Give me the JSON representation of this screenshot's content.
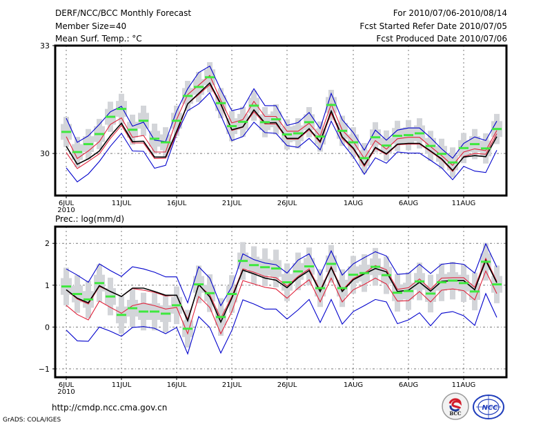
{
  "header": {
    "title": "DERF/NCC/BCC Monthly Forecast",
    "member_size": "Member Size=40",
    "variable_top": "Mean Surf. Temp.: °C",
    "for_range": "For 2010/07/06-2010/08/14",
    "fcst_started": "Fcst Started Refer Date 2010/07/05",
    "fcst_produced": "Fcst Produced Date 2010/07/06"
  },
  "footer": {
    "url": "http://cmdp.ncc.cma.gov.cn",
    "grads_credit": "GrADS: COLA/IGES",
    "logo_bcc": "BCC",
    "logo_ncc": "NCC"
  },
  "colors": {
    "ensemble_mean": "#000000",
    "spread_inner": "#e0223a",
    "spread_outer": "#0000cc",
    "member_box": "#d3d5d9",
    "median_bar": "#3ee83e",
    "grid": "#777777"
  },
  "chart_data": [
    {
      "type": "line",
      "title": "Mean Surf. Temp.: °C",
      "xlabel": "",
      "ylabel": "",
      "ylim": [
        28.83,
        33
      ],
      "yticks": [
        30,
        33
      ],
      "ytick_labels": [
        "30",
        "33"
      ],
      "grid": true,
      "x_start": "2010-07-06",
      "n_days": 40,
      "xticks_day_index": [
        0,
        5,
        10,
        15,
        20,
        26,
        31,
        36
      ],
      "xtick_labels": [
        "6JUL",
        "11JUL",
        "16JUL",
        "21JUL",
        "26JUL",
        "1AUG",
        "6AUG",
        "11AUG"
      ],
      "xtick_year": "2010",
      "series": [
        {
          "name": "ensemble_mean",
          "style": "black",
          "values": [
            30.2,
            29.7,
            29.85,
            30.07,
            30.49,
            30.84,
            30.33,
            30.34,
            29.9,
            29.9,
            30.62,
            31.38,
            31.67,
            31.96,
            31.38,
            30.66,
            30.74,
            31.21,
            30.85,
            30.86,
            30.42,
            30.42,
            30.69,
            30.33,
            31.18,
            30.46,
            30.15,
            29.68,
            30.17,
            29.99,
            30.26,
            30.28,
            30.28,
            30.07,
            29.85,
            29.53,
            29.9,
            29.94,
            29.91,
            30.47
          ]
        },
        {
          "name": "upper_inner",
          "style": "red",
          "values": [
            30.47,
            29.86,
            30.07,
            30.33,
            30.81,
            30.99,
            30.45,
            30.5,
            30.04,
            30.04,
            30.95,
            31.64,
            31.9,
            32.17,
            31.48,
            30.85,
            30.94,
            31.45,
            31.03,
            31.03,
            30.62,
            30.62,
            30.84,
            30.48,
            31.37,
            30.65,
            30.33,
            29.86,
            30.36,
            30.12,
            30.41,
            30.45,
            30.45,
            30.19,
            29.94,
            29.67,
            30.04,
            30.13,
            30.08,
            30.64
          ]
        },
        {
          "name": "lower_inner",
          "style": "red",
          "values": [
            30.03,
            29.58,
            29.78,
            29.99,
            30.42,
            30.78,
            30.29,
            30.29,
            29.86,
            29.87,
            30.55,
            31.38,
            31.64,
            31.91,
            31.35,
            30.64,
            30.73,
            31.16,
            30.82,
            30.82,
            30.4,
            30.4,
            30.66,
            30.3,
            31.12,
            30.42,
            30.12,
            29.64,
            30.14,
            29.97,
            30.24,
            30.26,
            30.26,
            30.05,
            29.83,
            29.5,
            29.92,
            30.0,
            29.98,
            30.55
          ]
        },
        {
          "name": "upper_outer",
          "style": "blue",
          "values": [
            30.98,
            30.31,
            30.49,
            30.81,
            31.16,
            31.31,
            30.76,
            30.87,
            30.37,
            30.33,
            31.18,
            31.8,
            32.25,
            32.43,
            31.77,
            31.19,
            31.26,
            31.8,
            31.33,
            31.33,
            30.78,
            30.86,
            31.14,
            30.69,
            31.67,
            30.94,
            30.58,
            30.09,
            30.65,
            30.37,
            30.65,
            30.71,
            30.71,
            30.44,
            30.13,
            29.87,
            30.28,
            30.46,
            30.36,
            30.9
          ]
        },
        {
          "name": "lower_outer",
          "style": "blue",
          "values": [
            29.6,
            29.21,
            29.43,
            29.78,
            30.2,
            30.56,
            30.07,
            30.06,
            29.59,
            29.67,
            30.54,
            31.19,
            31.38,
            31.69,
            31.06,
            30.36,
            30.47,
            30.87,
            30.58,
            30.56,
            30.22,
            30.17,
            30.42,
            30.1,
            30.9,
            30.29,
            29.91,
            29.42,
            29.88,
            29.73,
            30.04,
            30.01,
            30.01,
            29.81,
            29.6,
            29.27,
            29.64,
            29.51,
            29.47,
            30.09
          ]
        },
        {
          "name": "member_median",
          "style": "green-bar",
          "values": [
            30.6,
            30.04,
            30.26,
            30.54,
            31.02,
            31.24,
            30.66,
            30.91,
            30.41,
            30.31,
            30.91,
            31.6,
            31.85,
            32.12,
            31.4,
            30.76,
            30.88,
            31.33,
            30.87,
            30.95,
            30.53,
            30.56,
            30.87,
            30.47,
            31.35,
            30.63,
            30.31,
            29.87,
            30.45,
            30.22,
            30.49,
            30.51,
            30.56,
            30.21,
            29.99,
            29.75,
            30.15,
            30.26,
            30.14,
            30.68
          ]
        }
      ],
      "box_spread": {
        "outer": 0.42,
        "inner": 0.22
      }
    },
    {
      "type": "line",
      "title": "Prec.: log(mm/d)",
      "xlabel": "",
      "ylabel": "",
      "ylim": [
        -1.2,
        2.4
      ],
      "yticks": [
        -1,
        0,
        1,
        2
      ],
      "ytick_labels": [
        "−1",
        "0",
        "1",
        "2"
      ],
      "grid": true,
      "x_start": "2010-07-06",
      "n_days": 40,
      "xticks_day_index": [
        0,
        5,
        10,
        15,
        20,
        26,
        31,
        36
      ],
      "xtick_labels": [
        "6JUL",
        "11JUL",
        "16JUL",
        "21JUL",
        "26JUL",
        "1AUG",
        "6AUG",
        "11AUG"
      ],
      "xtick_year": "2010",
      "series": [
        {
          "name": "ensemble_mean",
          "style": "black",
          "values": [
            0.89,
            0.69,
            0.58,
            0.99,
            0.85,
            0.73,
            0.93,
            0.93,
            0.85,
            0.76,
            0.76,
            0.15,
            1.02,
            0.72,
            0.12,
            0.69,
            1.36,
            1.27,
            1.17,
            1.12,
            0.94,
            1.18,
            1.35,
            0.85,
            1.42,
            0.85,
            1.13,
            1.27,
            1.4,
            1.32,
            0.85,
            0.88,
            1.07,
            0.86,
            1.09,
            1.11,
            1.11,
            0.89,
            1.59,
            1.06
          ]
        },
        {
          "name": "upper_inner",
          "style": "red",
          "values": [
            0.89,
            0.67,
            0.55,
            0.97,
            0.85,
            0.73,
            0.92,
            0.88,
            0.83,
            0.74,
            0.76,
            0.19,
            1.0,
            0.77,
            0.21,
            0.73,
            1.39,
            1.31,
            1.21,
            1.18,
            0.98,
            1.21,
            1.39,
            0.88,
            1.45,
            0.88,
            1.16,
            1.29,
            1.47,
            1.37,
            0.9,
            0.94,
            1.15,
            0.9,
            1.17,
            1.18,
            1.18,
            0.95,
            1.64,
            1.09
          ]
        },
        {
          "name": "lower_inner",
          "style": "red",
          "values": [
            0.52,
            0.3,
            0.17,
            0.62,
            0.47,
            0.33,
            0.51,
            0.57,
            0.51,
            0.43,
            0.47,
            -0.16,
            0.73,
            0.47,
            -0.16,
            0.37,
            1.11,
            1.03,
            0.95,
            0.91,
            0.69,
            0.93,
            1.13,
            0.6,
            1.17,
            0.6,
            0.89,
            1.02,
            1.17,
            1.03,
            0.62,
            0.63,
            0.85,
            0.6,
            0.88,
            0.91,
            0.87,
            0.65,
            1.34,
            0.8
          ]
        },
        {
          "name": "upper_outer",
          "style": "blue",
          "values": [
            1.39,
            1.24,
            1.07,
            1.51,
            1.35,
            1.21,
            1.44,
            1.39,
            1.31,
            1.2,
            1.2,
            0.58,
            1.44,
            1.17,
            0.51,
            0.96,
            1.75,
            1.61,
            1.53,
            1.49,
            1.29,
            1.6,
            1.75,
            1.24,
            1.82,
            1.24,
            1.51,
            1.66,
            1.8,
            1.7,
            1.26,
            1.28,
            1.5,
            1.28,
            1.5,
            1.53,
            1.5,
            1.29,
            1.99,
            1.43
          ]
        },
        {
          "name": "lower_outer",
          "style": "blue",
          "values": [
            -0.07,
            -0.33,
            -0.34,
            0.0,
            -0.1,
            -0.22,
            -0.01,
            0.01,
            -0.03,
            -0.16,
            -0.01,
            -0.64,
            0.25,
            -0.01,
            -0.62,
            -0.08,
            0.65,
            0.55,
            0.43,
            0.43,
            0.19,
            0.41,
            0.66,
            0.11,
            0.66,
            0.07,
            0.37,
            0.51,
            0.66,
            0.6,
            0.08,
            0.17,
            0.34,
            0.03,
            0.33,
            0.37,
            0.27,
            0.04,
            0.8,
            0.23
          ]
        },
        {
          "name": "member_median",
          "style": "green-bar",
          "values": [
            0.97,
            0.79,
            0.66,
            1.05,
            0.73,
            0.29,
            0.45,
            0.37,
            0.37,
            0.32,
            0.52,
            -0.04,
            1.02,
            0.81,
            0.24,
            0.79,
            1.58,
            1.48,
            1.43,
            1.4,
            1.07,
            1.33,
            1.45,
            0.93,
            1.51,
            0.93,
            1.25,
            1.29,
            1.44,
            1.24,
            0.82,
            0.86,
            1.09,
            0.8,
            1.07,
            1.11,
            1.05,
            0.85,
            1.56,
            1.02
          ]
        }
      ],
      "box_spread": {
        "outer": 0.45,
        "inner": 0.2
      }
    }
  ]
}
